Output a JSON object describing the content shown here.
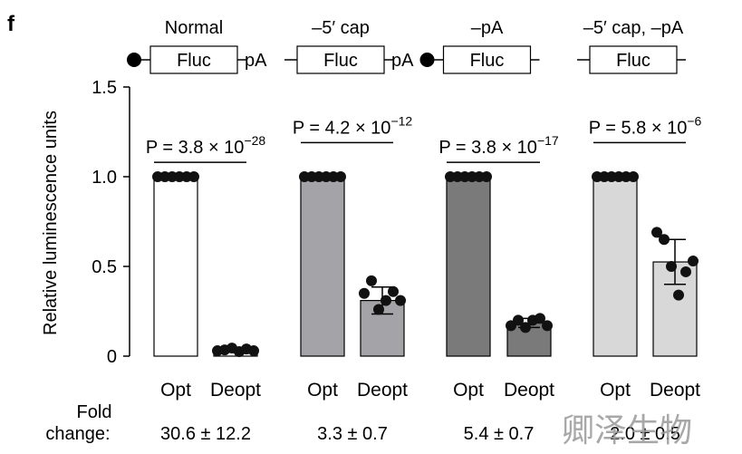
{
  "panel_label": "f",
  "constructs": [
    {
      "title": "Normal",
      "label": "Fluc",
      "cap": true,
      "tail": "pA"
    },
    {
      "title": "–5′ cap",
      "label": "Fluc",
      "cap": false,
      "tail": "pA"
    },
    {
      "title": "–pA",
      "label": "Fluc",
      "cap": true,
      "tail": ""
    },
    {
      "title": "–5′ cap, –pA",
      "label": "Fluc",
      "cap": false,
      "tail": ""
    }
  ],
  "chart_data": {
    "type": "bar",
    "ylabel": "Relative luminescence units",
    "ylim": [
      0,
      1.5
    ],
    "yticks": [
      "0",
      "0.5",
      "1.0",
      "1.5"
    ],
    "categories": [
      "Opt",
      "Deopt",
      "Opt",
      "Deopt",
      "Opt",
      "Deopt",
      "Opt",
      "Deopt"
    ],
    "groups": [
      "Normal",
      "–5′ cap",
      "–pA",
      "–5′ cap, –pA"
    ],
    "values": [
      1.0,
      0.035,
      1.0,
      0.31,
      1.0,
      0.185,
      1.0,
      0.525
    ],
    "errors": [
      0,
      0.01,
      0,
      0.075,
      0,
      0.025,
      0,
      0.125
    ],
    "colors": [
      "#ffffff",
      "#ffffff",
      "#a4a4a8",
      "#a4a4a8",
      "#7a7a7a",
      "#7a7a7a",
      "#d8d8d8",
      "#d8d8d8"
    ],
    "points": [
      [
        1.0,
        1.0,
        1.0,
        1.0,
        1.0,
        1.0
      ],
      [
        0.03,
        0.035,
        0.045,
        0.025,
        0.04,
        0.03
      ],
      [
        1.0,
        1.0,
        1.0,
        1.0,
        1.0,
        1.0
      ],
      [
        0.35,
        0.42,
        0.26,
        0.31,
        0.36,
        0.31
      ],
      [
        1.0,
        1.0,
        1.0,
        1.0,
        1.0,
        1.0
      ],
      [
        0.17,
        0.2,
        0.16,
        0.2,
        0.21,
        0.17
      ],
      [
        1.0,
        1.0,
        1.0,
        1.0,
        1.0,
        1.0
      ],
      [
        0.69,
        0.65,
        0.5,
        0.34,
        0.47,
        0.53
      ]
    ],
    "pvalues": [
      {
        "prefix": "P = 3.8 × 10",
        "exp": "−28",
        "y": 1.08
      },
      {
        "prefix": "P = 4.2 × 10",
        "exp": "−12",
        "y": 1.19
      },
      {
        "prefix": "P = 3.8 × 10",
        "exp": "−17",
        "y": 1.08
      },
      {
        "prefix": "P = 5.8 × 10",
        "exp": "−6",
        "y": 1.19
      }
    ],
    "fold_change_label": [
      "Fold",
      "change:"
    ],
    "fold_changes": [
      "30.6 ± 12.2",
      "3.3 ± 0.7",
      "5.4 ± 0.7",
      "2.0 ± 0.5"
    ]
  },
  "watermark": "卿泽生物"
}
